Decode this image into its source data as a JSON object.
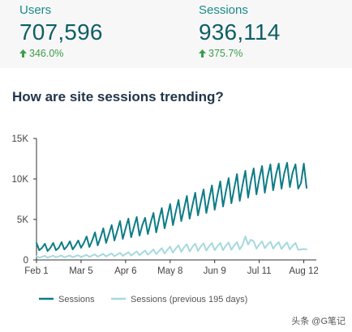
{
  "stats": [
    {
      "label": "Users",
      "value": "707,596",
      "change": "346.0%"
    },
    {
      "label": "Sessions",
      "value": "936,114",
      "change": "375.7%"
    }
  ],
  "section_title": "How are site sessions trending?",
  "watermark": "头条 @G笔记",
  "colors": {
    "primary": "#0e7c86",
    "secondary": "#a6d9dd",
    "positive": "#3c9d4a"
  },
  "chart_data": {
    "type": "line",
    "x_tick_labels": [
      "Feb 1",
      "Mar 5",
      "Apr 6",
      "May 8",
      "Jun 9",
      "Jul 11",
      "Aug 12"
    ],
    "y_tick_labels": [
      "0",
      "5K",
      "10K",
      "15K"
    ],
    "ylim": [
      0,
      15000
    ],
    "x": [
      1,
      3,
      5,
      7,
      9,
      11,
      13,
      15,
      17,
      19,
      21,
      23,
      25,
      27,
      29,
      31,
      33,
      35,
      37,
      39,
      41,
      43,
      45,
      47,
      49,
      51,
      53,
      55,
      57,
      59,
      61,
      63,
      65,
      67,
      69,
      71,
      73,
      75,
      77,
      79,
      81,
      83,
      85,
      87,
      89,
      91,
      93,
      95,
      97,
      99,
      101,
      103,
      105,
      107,
      109,
      111,
      113,
      115,
      117,
      119,
      121,
      123,
      125,
      127,
      129,
      131,
      133,
      135,
      137,
      139,
      141,
      143,
      145,
      147,
      149,
      151,
      153,
      155,
      157,
      159,
      161,
      163,
      165,
      167,
      169,
      171,
      173,
      175,
      177,
      179,
      181,
      183,
      185,
      187,
      189,
      191,
      193,
      195
    ],
    "series": [
      {
        "name": "Sessions",
        "color": "#0e7c86",
        "values": [
          2100,
          1200,
          1500,
          2000,
          1100,
          1500,
          2100,
          1200,
          1500,
          2200,
          1300,
          1700,
          2300,
          1300,
          1800,
          2400,
          1500,
          2100,
          2900,
          1600,
          2400,
          3400,
          1800,
          2800,
          3900,
          2100,
          3200,
          4300,
          2400,
          3600,
          4800,
          2600,
          3900,
          5100,
          2800,
          4100,
          5300,
          3000,
          4300,
          5200,
          3200,
          4600,
          5800,
          3400,
          5000,
          6400,
          3900,
          5400,
          6900,
          4300,
          5900,
          7400,
          4800,
          6300,
          7900,
          5100,
          6700,
          8300,
          5500,
          7100,
          8700,
          5800,
          7500,
          9200,
          6200,
          8000,
          9700,
          6600,
          8400,
          10100,
          7000,
          8800,
          10600,
          7300,
          9200,
          11000,
          7700,
          9700,
          11300,
          8100,
          10000,
          11600,
          8300,
          10300,
          11800,
          8600,
          10500,
          11900,
          8800,
          10700,
          12000,
          9000,
          10800,
          11800,
          8800,
          9500,
          11900,
          8900
        ]
      },
      {
        "name": "Sessions (previous 195 days)",
        "color": "#a6d9dd",
        "values": [
          450,
          300,
          380,
          500,
          280,
          420,
          520,
          330,
          440,
          560,
          320,
          450,
          540,
          340,
          470,
          580,
          360,
          500,
          620,
          380,
          540,
          680,
          400,
          580,
          740,
          430,
          630,
          800,
          460,
          680,
          880,
          500,
          740,
          950,
          540,
          800,
          1050,
          600,
          880,
          1150,
          660,
          960,
          1300,
          720,
          1100,
          1450,
          800,
          1250,
          1650,
          900,
          1400,
          1800,
          1000,
          1550,
          1950,
          1050,
          1600,
          2000,
          1100,
          1650,
          2050,
          1150,
          1700,
          2100,
          1200,
          1700,
          2100,
          1200,
          1750,
          2150,
          1250,
          1800,
          2200,
          1300,
          1850,
          2900,
          1900,
          2500,
          2300,
          1400,
          1900,
          2300,
          1450,
          1900,
          2250,
          1400,
          1850,
          2200,
          1350,
          1800,
          2150,
          1300,
          1750,
          2100,
          1250,
          1300,
          1350,
          1300
        ]
      }
    ]
  }
}
